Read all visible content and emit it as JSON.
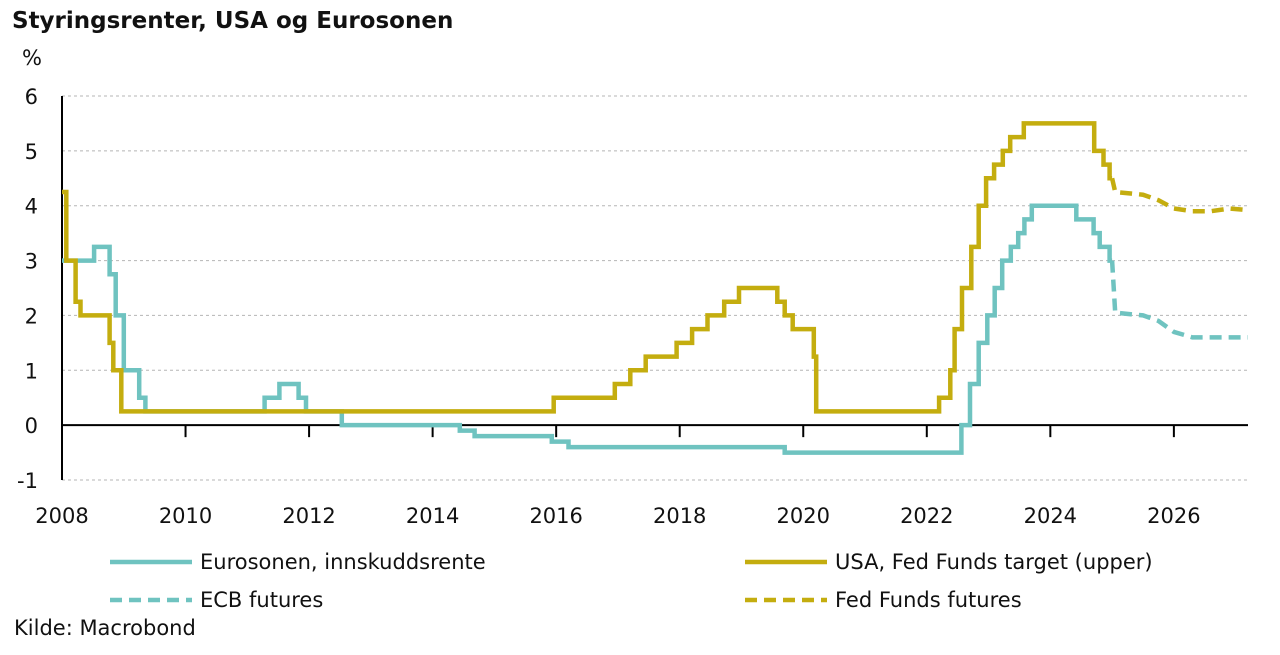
{
  "chart_data": {
    "type": "line",
    "title": "Styringsrenter, USA og Eurosonen",
    "ylabel": "%",
    "source": "Kilde: Macrobond",
    "xlim": [
      2008,
      2027.2
    ],
    "ylim": [
      -1,
      6
    ],
    "x_ticks": [
      "2008",
      "2010",
      "2012",
      "2014",
      "2016",
      "2018",
      "2020",
      "2022",
      "2024",
      "2026"
    ],
    "y_ticks": [
      "6",
      "5",
      "4",
      "3",
      "2",
      "1",
      "0",
      "-1"
    ],
    "grid": true,
    "legend_position": "bottom",
    "series": [
      {
        "name": "Eurosonen, innskuddsrente",
        "color": "#6fc3c0",
        "dash": "solid",
        "step": true,
        "points": [
          [
            2008.0,
            3.0
          ],
          [
            2008.52,
            3.25
          ],
          [
            2008.77,
            2.75
          ],
          [
            2008.87,
            2.0
          ],
          [
            2009.0,
            1.0
          ],
          [
            2009.25,
            0.5
          ],
          [
            2009.35,
            0.25
          ],
          [
            2011.28,
            0.5
          ],
          [
            2011.52,
            0.75
          ],
          [
            2011.83,
            0.5
          ],
          [
            2011.95,
            0.25
          ],
          [
            2012.53,
            0.0
          ],
          [
            2014.44,
            -0.1
          ],
          [
            2014.68,
            -0.2
          ],
          [
            2015.93,
            -0.3
          ],
          [
            2016.2,
            -0.4
          ],
          [
            2019.7,
            -0.5
          ],
          [
            2022.56,
            0.0
          ],
          [
            2022.7,
            0.75
          ],
          [
            2022.84,
            1.5
          ],
          [
            2022.98,
            2.0
          ],
          [
            2023.1,
            2.5
          ],
          [
            2023.22,
            3.0
          ],
          [
            2023.36,
            3.25
          ],
          [
            2023.48,
            3.5
          ],
          [
            2023.58,
            3.75
          ],
          [
            2023.7,
            4.0
          ],
          [
            2024.42,
            3.75
          ],
          [
            2024.7,
            3.5
          ],
          [
            2024.8,
            3.25
          ],
          [
            2024.96,
            3.0
          ],
          [
            2025.0,
            3.0
          ]
        ]
      },
      {
        "name": "USA, Fed Funds target (upper)",
        "color": "#c4ad0f",
        "dash": "solid",
        "step": true,
        "points": [
          [
            2008.0,
            4.25
          ],
          [
            2008.07,
            3.0
          ],
          [
            2008.22,
            2.25
          ],
          [
            2008.3,
            2.0
          ],
          [
            2008.77,
            1.5
          ],
          [
            2008.83,
            1.0
          ],
          [
            2008.96,
            0.25
          ],
          [
            2015.96,
            0.5
          ],
          [
            2016.95,
            0.75
          ],
          [
            2017.2,
            1.0
          ],
          [
            2017.45,
            1.25
          ],
          [
            2017.95,
            1.5
          ],
          [
            2018.2,
            1.75
          ],
          [
            2018.45,
            2.0
          ],
          [
            2018.72,
            2.25
          ],
          [
            2018.96,
            2.5
          ],
          [
            2019.58,
            2.25
          ],
          [
            2019.7,
            2.0
          ],
          [
            2019.83,
            1.75
          ],
          [
            2020.17,
            1.25
          ],
          [
            2020.21,
            0.25
          ],
          [
            2022.2,
            0.5
          ],
          [
            2022.38,
            1.0
          ],
          [
            2022.45,
            1.75
          ],
          [
            2022.57,
            2.5
          ],
          [
            2022.72,
            3.25
          ],
          [
            2022.84,
            4.0
          ],
          [
            2022.96,
            4.5
          ],
          [
            2023.09,
            4.75
          ],
          [
            2023.23,
            5.0
          ],
          [
            2023.35,
            5.25
          ],
          [
            2023.57,
            5.5
          ],
          [
            2024.71,
            5.0
          ],
          [
            2024.86,
            4.75
          ],
          [
            2024.96,
            4.5
          ],
          [
            2025.0,
            4.5
          ]
        ]
      },
      {
        "name": "ECB futures",
        "color": "#6fc3c0",
        "dash": "dashed",
        "step": false,
        "points": [
          [
            2025.0,
            3.0
          ],
          [
            2025.05,
            2.05
          ],
          [
            2025.5,
            2.0
          ],
          [
            2025.75,
            1.9
          ],
          [
            2026.0,
            1.7
          ],
          [
            2026.3,
            1.6
          ],
          [
            2026.7,
            1.6
          ],
          [
            2027.2,
            1.6
          ]
        ]
      },
      {
        "name": "Fed Funds futures",
        "color": "#c4ad0f",
        "dash": "dashed",
        "step": false,
        "points": [
          [
            2025.0,
            4.5
          ],
          [
            2025.05,
            4.25
          ],
          [
            2025.5,
            4.2
          ],
          [
            2025.75,
            4.1
          ],
          [
            2026.0,
            3.95
          ],
          [
            2026.3,
            3.9
          ],
          [
            2026.6,
            3.9
          ],
          [
            2026.9,
            3.95
          ],
          [
            2027.2,
            3.92
          ]
        ]
      }
    ]
  }
}
